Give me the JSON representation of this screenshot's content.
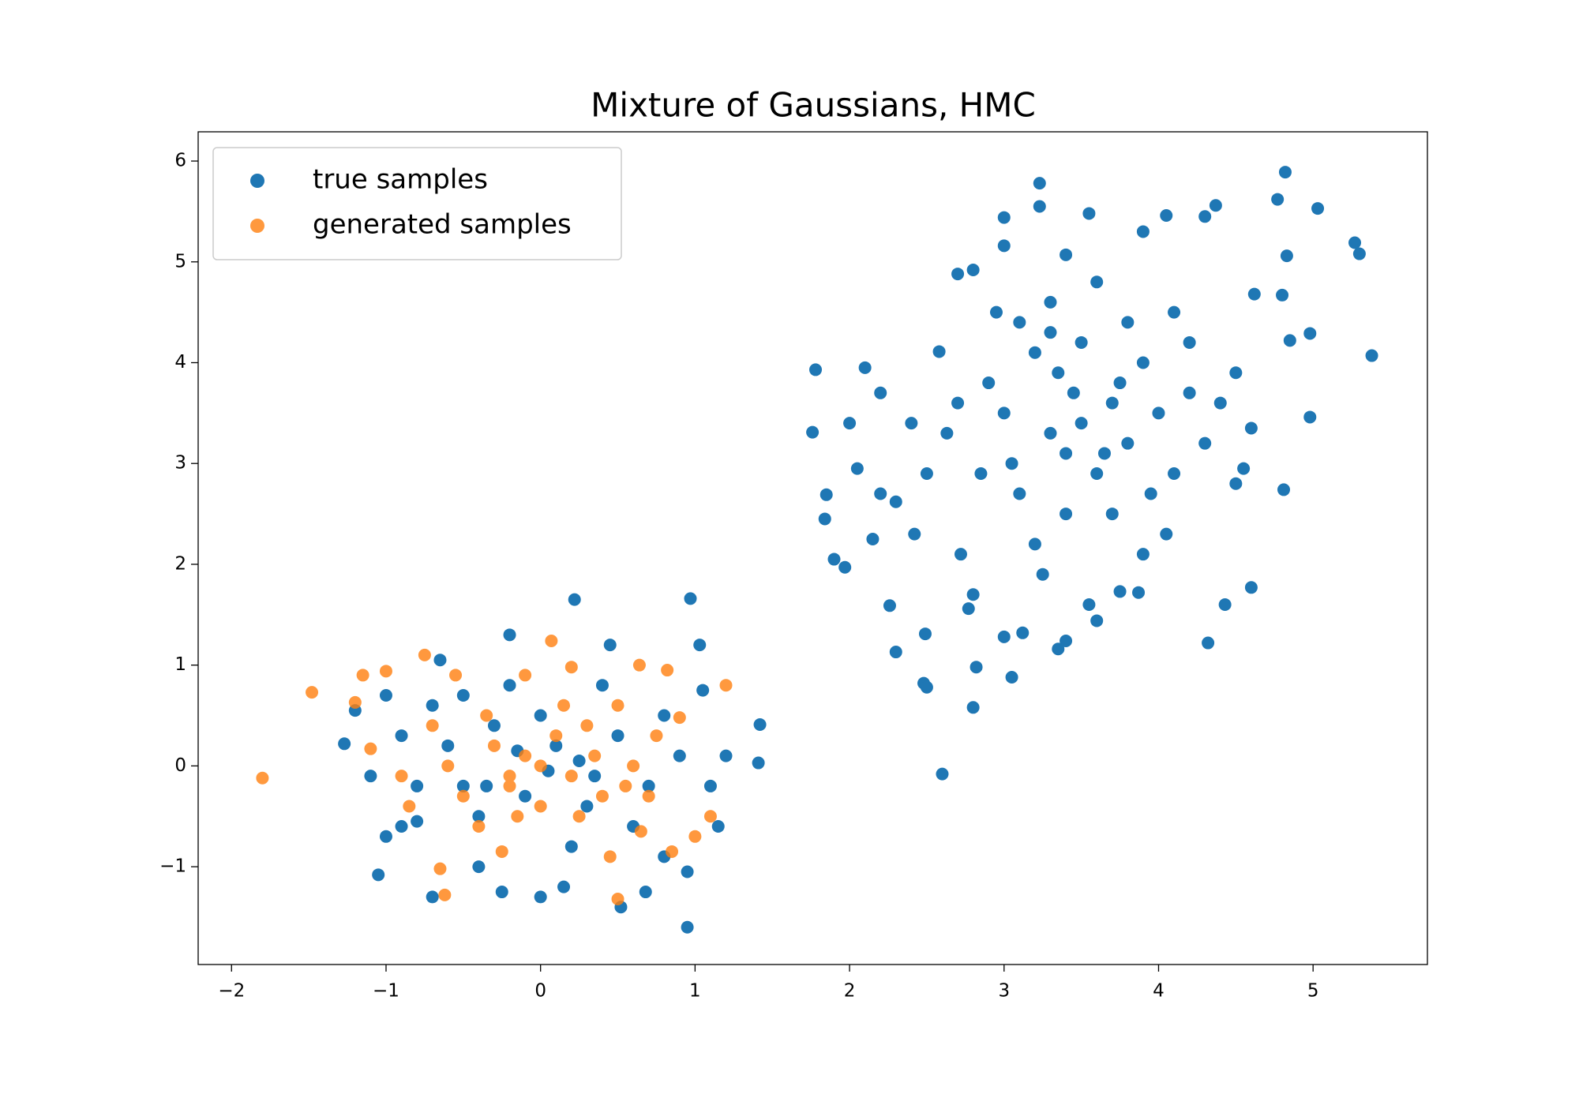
{
  "chart_data": {
    "type": "scatter",
    "title": "Mixture of Gaussians, HMC",
    "xlim": [
      -2.216,
      5.74
    ],
    "ylim": [
      -1.97,
      6.29
    ],
    "xticks": [
      {
        "value": -2,
        "label": "−2"
      },
      {
        "value": -1,
        "label": "−1"
      },
      0,
      1,
      2,
      3,
      4,
      5
    ],
    "yticks": [
      {
        "value": -1,
        "label": "−1"
      },
      0,
      1,
      2,
      3,
      4,
      5,
      6
    ],
    "grid": false,
    "legend": "upper left",
    "series": [
      {
        "name": "true samples",
        "color": "#1f77b4",
        "opacity": 1,
        "x": [
          1.78,
          1.76,
          1.85,
          1.84,
          1.9,
          1.97,
          2.1,
          2.2,
          2.26,
          2.3,
          2.48,
          2.5,
          2.49,
          2.6,
          2.8,
          2.82,
          2.58,
          2.7,
          2.8,
          3.0,
          3.0,
          3.23,
          3.23,
          3.55,
          3.9,
          4.05,
          4.37,
          4.3,
          4.82,
          4.77,
          5.03,
          5.27,
          5.3,
          5.38,
          4.98,
          4.98,
          4.85,
          4.83,
          4.8,
          4.62,
          4.6,
          4.81,
          4.6,
          4.43,
          4.32,
          3.35,
          3.05,
          3.0,
          3.12,
          3.6,
          3.4,
          3.75,
          3.87,
          2.8,
          2.77,
          2.72,
          2.42,
          2.3,
          2.5,
          2.63,
          2.9,
          3.2,
          3.3,
          3.4,
          3.5,
          3.6,
          3.7,
          3.8,
          3.9,
          4.0,
          4.1,
          4.2,
          3.1,
          3.0,
          3.3,
          3.5,
          3.6,
          3.8,
          4.1,
          4.2,
          3.2,
          3.4,
          3.7,
          3.9,
          4.05,
          2.85,
          2.7,
          3.05,
          3.45,
          3.35,
          3.65,
          3.75,
          3.95,
          4.3,
          4.4,
          4.5,
          4.55,
          4.5,
          2.4,
          2.2,
          2.0,
          2.05,
          2.15,
          3.25,
          3.55,
          3.3,
          3.1,
          2.95,
          3.4,
          -1.27,
          -1.2,
          -1.05,
          -1.0,
          -0.8,
          -0.7,
          -0.65,
          -0.5,
          -0.4,
          -0.25,
          -0.2,
          0.0,
          0.15,
          0.22,
          0.45,
          0.52,
          0.68,
          0.95,
          0.97,
          1.03,
          1.42,
          1.41,
          1.2,
          1.05,
          1.1,
          0.95,
          0.8,
          -0.9,
          -0.8,
          -0.6,
          -0.4,
          -0.3,
          -0.1,
          0.1,
          0.3,
          0.5,
          0.7,
          0.8,
          -0.5,
          -0.2,
          0.2,
          0.4,
          0.6,
          -0.7,
          -1.1,
          -0.9,
          0.9,
          0.0,
          0.05,
          -0.15,
          0.25,
          -0.35,
          0.35,
          1.15,
          -1.0
        ],
        "values": [
          3.93,
          3.31,
          2.69,
          2.45,
          2.05,
          1.97,
          3.95,
          3.7,
          1.59,
          1.13,
          0.82,
          0.78,
          1.31,
          -0.08,
          0.58,
          0.98,
          4.11,
          4.88,
          4.92,
          5.44,
          5.16,
          5.78,
          5.55,
          5.48,
          5.3,
          5.46,
          5.56,
          5.45,
          5.89,
          5.62,
          5.53,
          5.19,
          5.08,
          4.07,
          4.29,
          3.46,
          4.22,
          5.06,
          4.67,
          4.68,
          3.35,
          2.74,
          1.77,
          1.6,
          1.22,
          1.16,
          0.88,
          1.28,
          1.32,
          1.44,
          1.24,
          1.73,
          1.72,
          1.7,
          1.56,
          2.1,
          2.3,
          2.62,
          2.9,
          3.3,
          3.8,
          4.1,
          3.3,
          3.1,
          3.4,
          2.9,
          3.6,
          3.2,
          4.0,
          3.5,
          2.9,
          3.7,
          2.7,
          3.5,
          4.6,
          4.2,
          4.8,
          4.4,
          4.5,
          4.2,
          2.2,
          2.5,
          2.5,
          2.1,
          2.3,
          2.9,
          3.6,
          3.0,
          3.7,
          3.9,
          3.1,
          3.8,
          2.7,
          3.2,
          3.6,
          3.9,
          2.95,
          2.8,
          3.4,
          2.7,
          3.4,
          2.95,
          2.25,
          1.9,
          1.6,
          4.3,
          4.4,
          4.5,
          5.07,
          0.22,
          0.55,
          -1.08,
          0.7,
          -0.55,
          -1.3,
          1.05,
          0.7,
          -1.0,
          -1.25,
          1.3,
          -1.3,
          -1.2,
          1.65,
          1.2,
          -1.4,
          -1.25,
          -1.6,
          1.66,
          1.2,
          0.41,
          0.03,
          0.1,
          0.75,
          -0.2,
          -1.05,
          -0.9,
          0.3,
          -0.2,
          0.2,
          -0.5,
          0.4,
          -0.3,
          0.2,
          -0.4,
          0.3,
          -0.2,
          0.5,
          -0.2,
          0.8,
          -0.8,
          0.8,
          -0.6,
          0.6,
          -0.1,
          -0.6,
          0.1,
          0.5,
          -0.05,
          0.15,
          0.05,
          -0.2,
          -0.1,
          -0.6,
          -0.7
        ]
      },
      {
        "name": "generated samples",
        "color": "#ff7f0e",
        "opacity": 0.8,
        "x": [
          -1.8,
          -1.48,
          -1.2,
          -1.15,
          -1.1,
          -1.0,
          -0.75,
          -0.65,
          -0.62,
          -0.55,
          -0.1,
          0.07,
          0.2,
          0.5,
          0.64,
          0.82,
          1.2,
          0.9,
          1.1,
          1.0,
          0.85,
          0.65,
          -0.85,
          -0.7,
          -0.5,
          -0.3,
          -0.2,
          -0.1,
          0.0,
          0.1,
          0.2,
          0.3,
          0.4,
          0.5,
          0.6,
          0.7,
          -0.4,
          -0.25,
          0.15,
          -0.6,
          -0.15,
          0.35,
          0.75,
          -0.9,
          0.45,
          -0.35,
          0.0,
          -0.2,
          0.25,
          0.55
        ],
        "values": [
          -0.12,
          0.73,
          0.63,
          0.9,
          0.17,
          0.94,
          1.1,
          -1.02,
          -1.28,
          0.9,
          0.9,
          1.24,
          0.98,
          -1.32,
          1.0,
          0.95,
          0.8,
          0.48,
          -0.5,
          -0.7,
          -0.85,
          -0.65,
          -0.4,
          0.4,
          -0.3,
          0.2,
          -0.2,
          0.1,
          -0.4,
          0.3,
          -0.1,
          0.4,
          -0.3,
          0.6,
          0.0,
          -0.3,
          -0.6,
          -0.85,
          0.6,
          0.0,
          -0.5,
          0.1,
          0.3,
          -0.1,
          -0.9,
          0.5,
          0.0,
          -0.1,
          -0.5,
          -0.2
        ]
      }
    ]
  }
}
